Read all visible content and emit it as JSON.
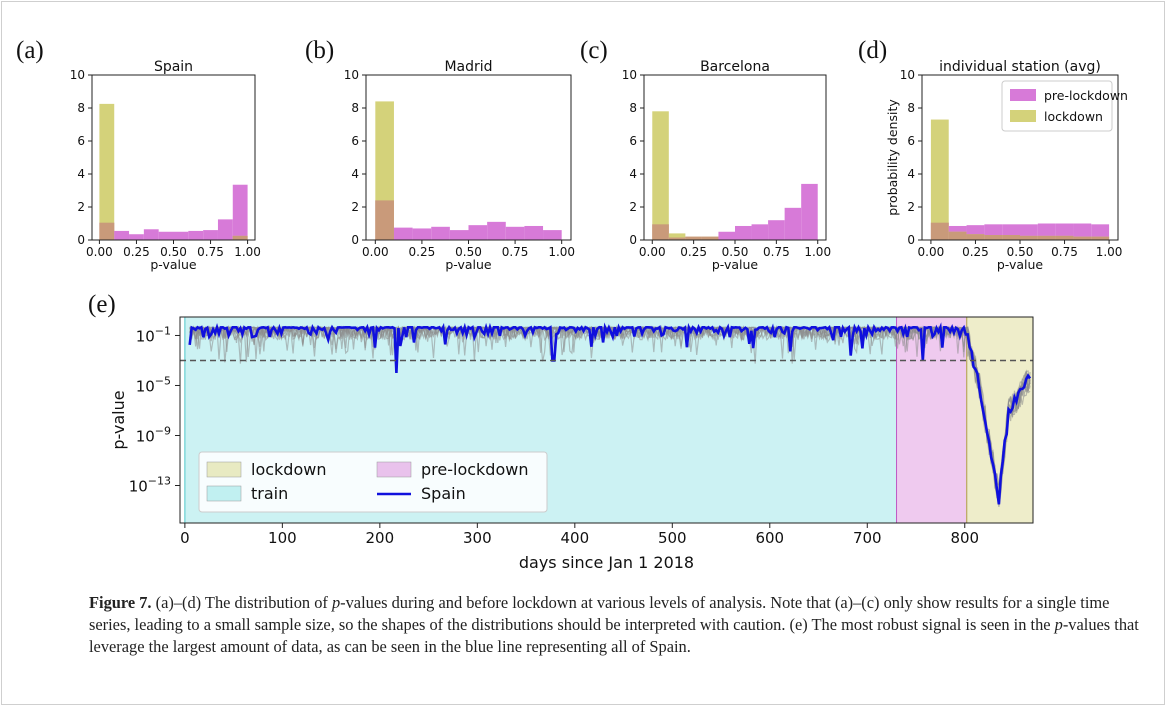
{
  "colors": {
    "lockdown": "#d4d27a",
    "pre_lockdown": "#d77ad8",
    "train": "#7fdfe2",
    "overlap": "#c99a7a",
    "spain_line": "#1010dd",
    "station_lines": "#8c8c8c",
    "threshold": "#555555"
  },
  "chart_data": [
    {
      "panel": "(a)",
      "type": "bar",
      "title": "Spain",
      "xlabel": "p-value",
      "ylabel": "",
      "xlim": [
        0,
        1
      ],
      "ylim": [
        0,
        10
      ],
      "xticks": [
        "0.00",
        "0.25",
        "0.50",
        "0.75",
        "1.00"
      ],
      "yticks": [
        "0",
        "2",
        "4",
        "6",
        "8",
        "10"
      ],
      "bin_edges": [
        0,
        0.1,
        0.2,
        0.3,
        0.4,
        0.5,
        0.6,
        0.7,
        0.8,
        0.9,
        1.0
      ],
      "series": [
        {
          "name": "pre-lockdown",
          "values": [
            1.05,
            0.55,
            0.35,
            0.65,
            0.5,
            0.5,
            0.55,
            0.6,
            1.25,
            3.35
          ]
        },
        {
          "name": "lockdown",
          "values": [
            8.25,
            0,
            0,
            0,
            0,
            0,
            0,
            0,
            0,
            0.25
          ]
        }
      ]
    },
    {
      "panel": "(b)",
      "type": "bar",
      "title": "Madrid",
      "xlabel": "p-value",
      "ylabel": "",
      "xlim": [
        0,
        1
      ],
      "ylim": [
        0,
        10
      ],
      "xticks": [
        "0.00",
        "0.25",
        "0.50",
        "0.75",
        "1.00"
      ],
      "yticks": [
        "0",
        "2",
        "4",
        "6",
        "8",
        "10"
      ],
      "bin_edges": [
        0,
        0.1,
        0.2,
        0.3,
        0.4,
        0.5,
        0.6,
        0.7,
        0.8,
        0.9,
        1.0
      ],
      "series": [
        {
          "name": "pre-lockdown",
          "values": [
            2.4,
            0.75,
            0.7,
            0.8,
            0.6,
            0.9,
            1.1,
            0.8,
            0.85,
            0.6
          ]
        },
        {
          "name": "lockdown",
          "values": [
            8.4,
            0,
            0,
            0,
            0,
            0,
            0,
            0,
            0,
            0
          ]
        }
      ]
    },
    {
      "panel": "(c)",
      "type": "bar",
      "title": "Barcelona",
      "xlabel": "p-value",
      "ylabel": "",
      "xlim": [
        0,
        1
      ],
      "ylim": [
        0,
        10
      ],
      "xticks": [
        "0.00",
        "0.25",
        "0.50",
        "0.75",
        "1.00"
      ],
      "yticks": [
        "0",
        "2",
        "4",
        "6",
        "8",
        "10"
      ],
      "bin_edges": [
        0,
        0.1,
        0.2,
        0.3,
        0.4,
        0.5,
        0.6,
        0.7,
        0.8,
        0.9,
        1.0
      ],
      "series": [
        {
          "name": "pre-lockdown",
          "values": [
            0.95,
            0.15,
            0.2,
            0.2,
            0.5,
            0.85,
            0.95,
            1.2,
            1.95,
            3.4
          ]
        },
        {
          "name": "lockdown",
          "values": [
            7.8,
            0.4,
            0.2,
            0.2,
            0,
            0,
            0,
            0,
            0,
            0
          ]
        }
      ]
    },
    {
      "panel": "(d)",
      "type": "bar",
      "title": "individual station (avg)",
      "xlabel": "p-value",
      "ylabel": "probability density",
      "xlim": [
        0,
        1
      ],
      "ylim": [
        0,
        10
      ],
      "xticks": [
        "0.00",
        "0.25",
        "0.50",
        "0.75",
        "1.00"
      ],
      "yticks": [
        "0",
        "2",
        "4",
        "6",
        "8",
        "10"
      ],
      "bin_edges": [
        0,
        0.1,
        0.2,
        0.3,
        0.4,
        0.5,
        0.6,
        0.7,
        0.8,
        0.9,
        1.0
      ],
      "legend": {
        "placement": "top-right",
        "entries": [
          "pre-lockdown",
          "lockdown"
        ]
      },
      "series": [
        {
          "name": "pre-lockdown",
          "values": [
            1.05,
            0.85,
            0.9,
            0.95,
            0.95,
            0.95,
            1.0,
            1.0,
            1.0,
            0.95
          ]
        },
        {
          "name": "lockdown",
          "values": [
            7.3,
            0.5,
            0.35,
            0.3,
            0.3,
            0.25,
            0.25,
            0.25,
            0.2,
            0.2
          ]
        }
      ]
    },
    {
      "panel": "(e)",
      "type": "line",
      "xlabel": "days since Jan 1 2018",
      "ylabel": "p-value",
      "xlim": [
        -5,
        870
      ],
      "ylog": true,
      "ylim": [
        1e-16,
        3
      ],
      "xticks": [
        "0",
        "100",
        "200",
        "300",
        "400",
        "500",
        "600",
        "700",
        "800"
      ],
      "yticks": [
        "10",
        "10",
        "10",
        "10"
      ],
      "ytick_exponents": [
        "−1",
        "−5",
        "−9",
        "−13"
      ],
      "threshold_line": 0.001,
      "regions": [
        {
          "name": "train",
          "from": 0,
          "to": 730
        },
        {
          "name": "pre-lockdown",
          "from": 730,
          "to": 802
        },
        {
          "name": "lockdown",
          "from": 802,
          "to": 870
        }
      ],
      "legend": {
        "placement": "bottom-left",
        "entries": [
          "lockdown",
          "train",
          "pre-lockdown",
          "Spain"
        ]
      },
      "series_name": "Spain",
      "series_anchor_points": [
        [
          0,
          0.4
        ],
        [
          20,
          0.4
        ],
        [
          55,
          0.4
        ],
        [
          90,
          0.4
        ],
        [
          150,
          0.4
        ],
        [
          215,
          0.0001
        ],
        [
          300,
          0.4
        ],
        [
          380,
          0.001
        ],
        [
          450,
          0.4
        ],
        [
          600,
          0.01
        ],
        [
          700,
          0.4
        ],
        [
          760,
          0.001
        ],
        [
          800,
          0.4
        ],
        [
          815,
          1e-05
        ],
        [
          835,
          1e-14
        ],
        [
          845,
          1e-07
        ],
        [
          855,
          1e-06
        ],
        [
          870,
          0.0001
        ]
      ]
    }
  ],
  "caption": {
    "label": "Figure 7.",
    "parts": [
      {
        "t": " (a)–(d) The distribution of ",
        "i": false
      },
      {
        "t": "p",
        "i": true
      },
      {
        "t": "-values during and before lockdown at various levels of analysis. Note that (a)–(c) only show results for a single time series, leading to a small sample size, so the shapes of the distributions should be interpreted with caution. (e) The most robust signal is seen in the ",
        "i": false
      },
      {
        "t": "p",
        "i": true
      },
      {
        "t": "-values that leverage the largest amount of data, as can be seen in the blue line representing all of Spain.",
        "i": false
      }
    ]
  }
}
